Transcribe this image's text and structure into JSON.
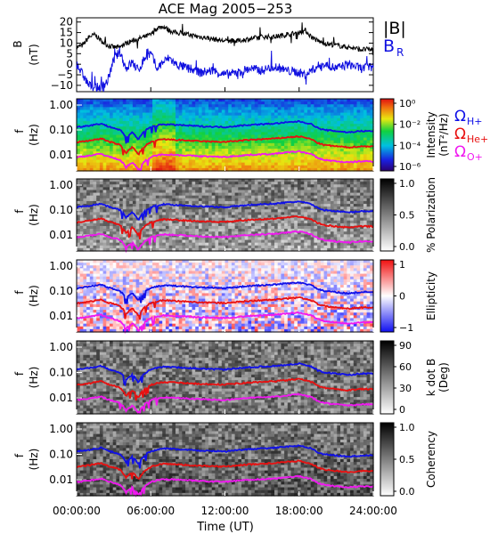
{
  "chart_data": {
    "type": "spectrogram",
    "title": "ACE Mag 2005−253",
    "x_axis": {
      "label": "Time (UT)",
      "ticks": [
        "00:00:00",
        "06:00:00",
        "12:00:00",
        "18:00:00",
        "24:00:00"
      ],
      "range_hours": [
        0,
        24
      ]
    },
    "panels": [
      {
        "id": "b",
        "ylabel": "B",
        "yunit": "(nT)",
        "yticks": [
          "20",
          "15",
          "10",
          "5",
          "0",
          "−5",
          "−10"
        ],
        "ylim": [
          -13,
          22
        ],
        "series": [
          {
            "name": "|B|",
            "color": "#000000",
            "t": [
              0,
              0.5,
              1,
              1.5,
              2,
              2.5,
              3,
              3.5,
              4,
              4.5,
              5,
              5.5,
              6,
              6.5,
              7,
              7.5,
              8,
              9,
              10,
              11,
              12,
              13,
              14,
              15,
              16,
              17,
              18,
              18.5,
              19,
              19.5,
              20,
              21,
              22,
              23,
              24
            ],
            "v": [
              8,
              9,
              13,
              14,
              11,
              9,
              8,
              8,
              10,
              11,
              12,
              13,
              14,
              17,
              18,
              16,
              15,
              14,
              13,
              12,
              11,
              11,
              12,
              13,
              13,
              14,
              15,
              16,
              13,
              11,
              10,
              9,
              8,
              7,
              7
            ]
          },
          {
            "name": "B",
            "subscript": "R",
            "color": "#1010e0",
            "t": [
              0,
              0.5,
              1,
              1.5,
              2,
              2.5,
              3,
              3.5,
              4,
              4.5,
              5,
              5.5,
              6,
              6.5,
              7,
              7.5,
              8,
              9,
              10,
              11,
              12,
              13,
              14,
              15,
              16,
              17,
              18,
              18.5,
              19,
              19.5,
              20,
              21,
              22,
              23,
              24
            ],
            "v": [
              0,
              -5,
              -10,
              -11,
              -11,
              -8,
              2,
              6,
              -2,
              1,
              -3,
              3,
              5,
              -2,
              1,
              3,
              0,
              -2,
              -4,
              -3,
              -5,
              -4,
              -2,
              -3,
              -1,
              -3,
              -4,
              -5,
              -3,
              -1,
              0,
              -2,
              0,
              -2,
              -1
            ]
          }
        ]
      },
      {
        "id": "intensity",
        "ylabel": "f",
        "yunit": "(Hz)",
        "yticks": [
          "1.00",
          "0.10",
          "0.01"
        ],
        "colorbar": {
          "label": "Intensity",
          "unit": "(nT²/Hz)",
          "palette": "rainbow",
          "ticks": [
            "10⁰",
            "10⁻²",
            "10⁻⁴",
            "10⁻⁶"
          ]
        }
      },
      {
        "id": "polarization",
        "ylabel": "f",
        "yunit": "(Hz)",
        "yticks": [
          "1.00",
          "0.10",
          "0.01"
        ],
        "colorbar": {
          "label": "% Polarization",
          "palette": "gray",
          "ticks": [
            "1.0",
            "0.5",
            "0.0"
          ]
        }
      },
      {
        "id": "ellipticity",
        "ylabel": "f",
        "yunit": "(Hz)",
        "yticks": [
          "1.00",
          "0.10",
          "0.01"
        ],
        "colorbar": {
          "label": "Ellipticity",
          "palette": "bluewhitered",
          "ticks": [
            "1",
            "0",
            "−1"
          ]
        }
      },
      {
        "id": "kdotb",
        "ylabel": "f",
        "yunit": "(Hz)",
        "yticks": [
          "1.00",
          "0.10",
          "0.01"
        ],
        "colorbar": {
          "label": "k dot B",
          "unit": "(Deg)",
          "palette": "gray",
          "ticks": [
            "90",
            "60",
            "30",
            "0"
          ]
        }
      },
      {
        "id": "coherency",
        "ylabel": "f",
        "yunit": "(Hz)",
        "yticks": [
          "1.00",
          "0.10",
          "0.01"
        ],
        "colorbar": {
          "label": "Coherency",
          "palette": "gray",
          "ticks": [
            "1.0",
            "0.5",
            "0.0"
          ]
        }
      }
    ],
    "gyro_lines": [
      {
        "name": "Ω",
        "subscript": "H+",
        "color": "#1010e8",
        "t": [
          0,
          1,
          2,
          2.5,
          3,
          3.5,
          4,
          4.5,
          5,
          5.5,
          6,
          6.5,
          7,
          8,
          10,
          12,
          14,
          16,
          17,
          18,
          19,
          19.5,
          20,
          21,
          22,
          23,
          24
        ],
        "f": [
          0.13,
          0.15,
          0.18,
          0.14,
          0.12,
          0.1,
          0.05,
          0.08,
          0.04,
          0.09,
          0.13,
          0.15,
          0.17,
          0.16,
          0.14,
          0.13,
          0.16,
          0.18,
          0.2,
          0.22,
          0.17,
          0.12,
          0.1,
          0.09,
          0.08,
          0.09,
          0.09
        ]
      },
      {
        "name": "Ω",
        "subscript": "He+",
        "color": "#e81010",
        "t": [
          0,
          1,
          2,
          2.5,
          3,
          3.5,
          4,
          4.5,
          5,
          5.5,
          6,
          6.5,
          7,
          8,
          10,
          12,
          14,
          16,
          17,
          18,
          19,
          19.5,
          20,
          21,
          22,
          23,
          24
        ],
        "f": [
          0.032,
          0.037,
          0.045,
          0.035,
          0.03,
          0.025,
          0.012,
          0.02,
          0.01,
          0.022,
          0.032,
          0.038,
          0.042,
          0.04,
          0.035,
          0.033,
          0.04,
          0.045,
          0.05,
          0.055,
          0.042,
          0.03,
          0.025,
          0.022,
          0.02,
          0.022,
          0.022
        ]
      },
      {
        "name": "Ω",
        "subscript": "O+",
        "color": "#f018f0",
        "t": [
          0,
          1,
          2,
          2.5,
          3,
          3.5,
          4,
          4.5,
          5,
          5.5,
          6,
          6.5,
          7,
          8,
          10,
          12,
          14,
          16,
          17,
          18,
          19,
          19.5,
          20,
          21,
          22,
          23,
          24
        ],
        "f": [
          0.008,
          0.0093,
          0.011,
          0.0088,
          0.0075,
          0.0063,
          0.0031,
          0.005,
          0.0025,
          0.0055,
          0.008,
          0.0095,
          0.0105,
          0.01,
          0.0088,
          0.0082,
          0.01,
          0.011,
          0.0125,
          0.0138,
          0.0105,
          0.0075,
          0.0063,
          0.0055,
          0.005,
          0.0055,
          0.0055
        ]
      }
    ]
  }
}
